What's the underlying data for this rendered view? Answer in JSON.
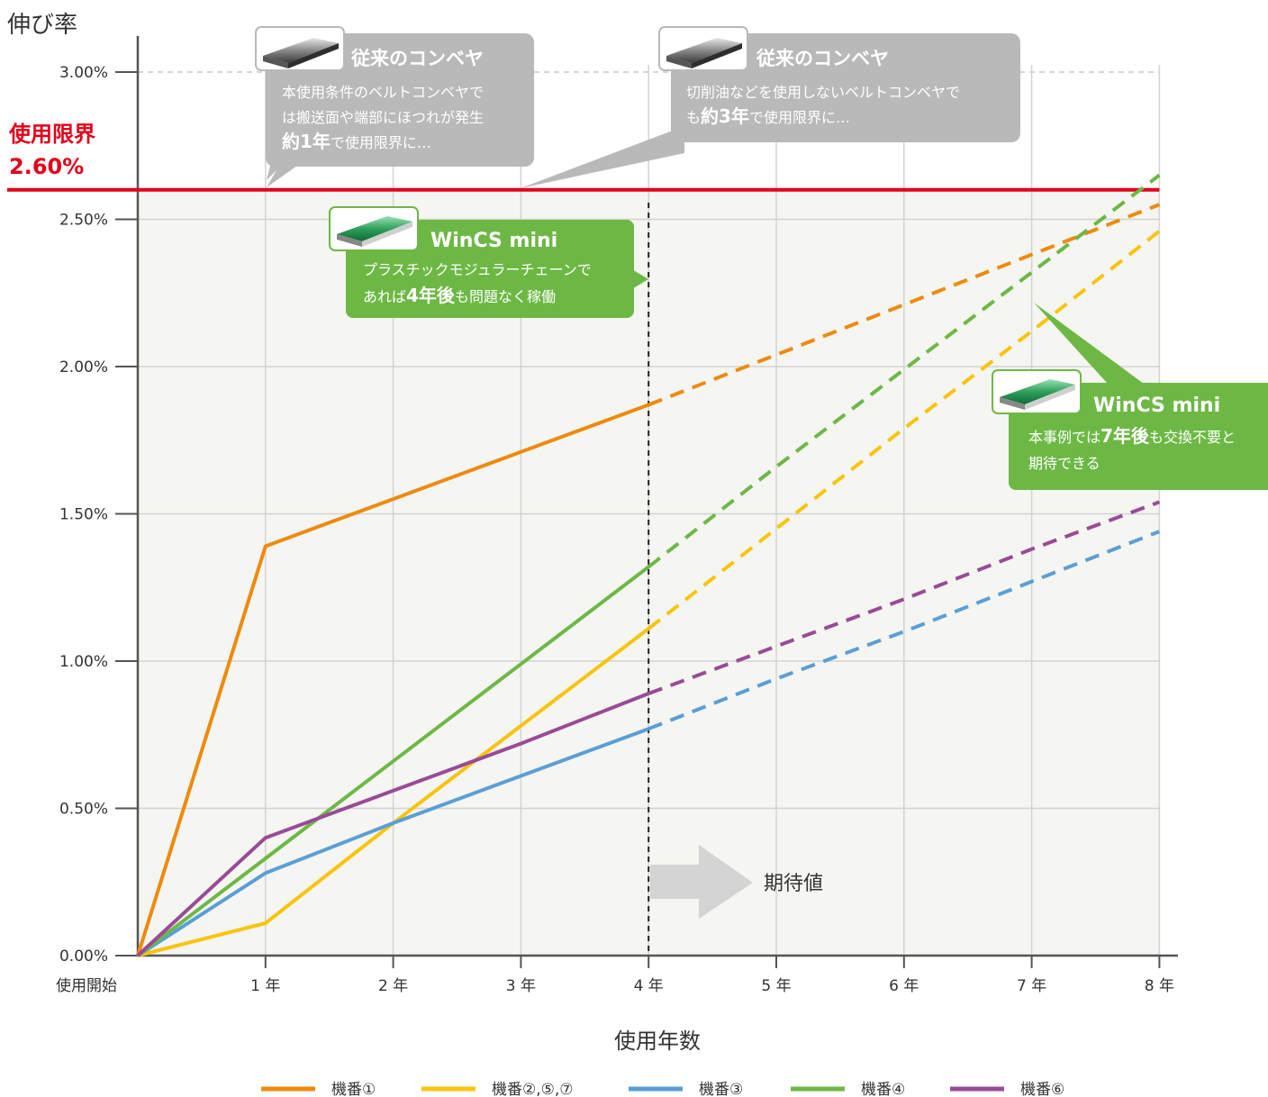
{
  "chart_data": {
    "type": "line",
    "ylabel": "伸び率",
    "xlabel": "使用年数",
    "x": [
      0,
      1,
      2,
      3,
      4,
      5,
      6,
      7,
      8
    ],
    "x_tick_labels": [
      "使用開始",
      "1 年",
      "2 年",
      "3 年",
      "4 年",
      "5 年",
      "6 年",
      "7 年",
      "8 年"
    ],
    "y_tick_labels": [
      "0.00%",
      "0.50%",
      "1.00%",
      "1.50%",
      "2.00%",
      "2.50%",
      "3.00%"
    ],
    "ylim": [
      0,
      3.0
    ],
    "xlim": [
      0,
      8
    ],
    "measured_until_x": 4,
    "series": [
      {
        "name": "機番①",
        "color": "#EE8A0E",
        "values": [
          0,
          1.39,
          1.55,
          1.71,
          1.87,
          2.04,
          2.21,
          2.38,
          2.55
        ]
      },
      {
        "name": "機番②,⑤,⑦",
        "color": "#F9C40E",
        "values": [
          0,
          0.11,
          0.45,
          0.78,
          1.11,
          1.45,
          1.79,
          2.12,
          2.46
        ]
      },
      {
        "name": "機番③",
        "color": "#5A9FD6",
        "values": [
          0,
          0.28,
          0.45,
          0.61,
          0.77,
          0.94,
          1.1,
          1.27,
          1.44
        ]
      },
      {
        "name": "機番④",
        "color": "#6DB845",
        "values": [
          0,
          0.33,
          0.66,
          0.99,
          1.32,
          1.66,
          1.99,
          2.32,
          2.65
        ]
      },
      {
        "name": "機番⑥",
        "color": "#9A4A98",
        "values": [
          0,
          0.4,
          0.56,
          0.72,
          0.89,
          1.05,
          1.21,
          1.38,
          1.54
        ]
      }
    ],
    "limit": {
      "label": "使用限界",
      "value_label": "2.60%",
      "value": 2.6,
      "color": "#E2001A"
    },
    "expected_label": "期待値",
    "callouts": {
      "conventional_1": {
        "title": "従来のコンベヤ",
        "line1": "本使用条件のベルトコンベヤで",
        "line2": "は搬送面や端部にほつれが発生",
        "line3_bold": "約1年",
        "line3_rest": "で使用限界に…"
      },
      "conventional_2": {
        "title": "従来のコンベヤ",
        "line1": "切削油などを使用しないベルトコンベヤで",
        "line2_pre": "も",
        "line2_bold": "約3年",
        "line2_rest": "で使用限界に…"
      },
      "wincs_1": {
        "title": "WinCS mini",
        "line1": "プラスチックモジュラーチェーンで",
        "line2_pre": "あれば",
        "line2_bold": "4年後",
        "line2_rest": "も問題なく稼働"
      },
      "wincs_2": {
        "title": "WinCS mini",
        "line1_pre": "本事例では",
        "line1_bold": "7年後",
        "line1_rest": "も交換不要と",
        "line2": "期待できる"
      }
    },
    "grid": true,
    "legend_position": "bottom"
  }
}
